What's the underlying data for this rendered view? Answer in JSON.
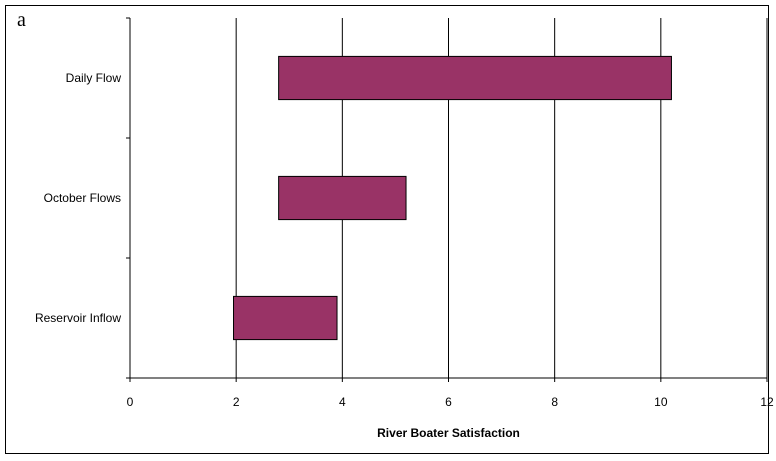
{
  "panel_label": "a",
  "chart_data": {
    "type": "bar",
    "orientation": "horizontal",
    "subtype": "floating-range",
    "title": "",
    "xlabel": "River Boater Satisfaction",
    "ylabel": "",
    "xlim": [
      0,
      12
    ],
    "xticks": [
      0,
      2,
      4,
      6,
      8,
      10,
      12
    ],
    "grid": "vertical",
    "legend": "none",
    "categories": [
      "Daily Flow",
      "October Flows",
      "Reservoir Inflow"
    ],
    "ranges": [
      {
        "category": "Daily Flow",
        "start": 2.8,
        "end": 10.2
      },
      {
        "category": "October Flows",
        "start": 2.8,
        "end": 5.2
      },
      {
        "category": "Reservoir Inflow",
        "start": 1.95,
        "end": 3.9
      }
    ],
    "colors": {
      "bar_fill": "#993366",
      "bar_stroke": "#000000",
      "grid": "#000000"
    }
  }
}
